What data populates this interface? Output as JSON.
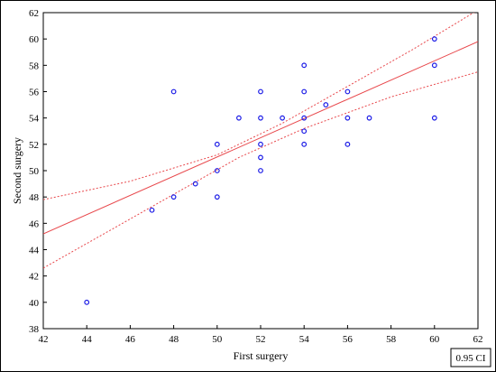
{
  "chart_data": {
    "type": "scatter",
    "title": "",
    "xlabel": "First surgery",
    "ylabel": "Second surgery",
    "xlim": [
      42,
      62
    ],
    "ylim": [
      38,
      62
    ],
    "xticks": [
      42,
      44,
      46,
      48,
      50,
      52,
      54,
      56,
      58,
      60,
      62
    ],
    "yticks": [
      38,
      40,
      42,
      44,
      46,
      48,
      50,
      52,
      54,
      56,
      58,
      60,
      62
    ],
    "grid": false,
    "points": [
      {
        "x": 44,
        "y": 40
      },
      {
        "x": 47,
        "y": 47
      },
      {
        "x": 48,
        "y": 48
      },
      {
        "x": 48,
        "y": 56
      },
      {
        "x": 49,
        "y": 49
      },
      {
        "x": 50,
        "y": 48
      },
      {
        "x": 50,
        "y": 50
      },
      {
        "x": 50,
        "y": 52
      },
      {
        "x": 51,
        "y": 54
      },
      {
        "x": 52,
        "y": 50
      },
      {
        "x": 52,
        "y": 51
      },
      {
        "x": 52,
        "y": 52
      },
      {
        "x": 52,
        "y": 54
      },
      {
        "x": 52,
        "y": 56
      },
      {
        "x": 53,
        "y": 54
      },
      {
        "x": 54,
        "y": 52
      },
      {
        "x": 54,
        "y": 53
      },
      {
        "x": 54,
        "y": 54
      },
      {
        "x": 54,
        "y": 56
      },
      {
        "x": 54,
        "y": 58
      },
      {
        "x": 55,
        "y": 55
      },
      {
        "x": 56,
        "y": 52
      },
      {
        "x": 56,
        "y": 54
      },
      {
        "x": 56,
        "y": 56
      },
      {
        "x": 57,
        "y": 54
      },
      {
        "x": 60,
        "y": 54
      },
      {
        "x": 60,
        "y": 58
      },
      {
        "x": 60,
        "y": 60
      }
    ],
    "fit_line": [
      {
        "x": 42,
        "y": 45.2
      },
      {
        "x": 62,
        "y": 59.8
      }
    ],
    "ci_upper": [
      {
        "x": 42,
        "y": 47.8
      },
      {
        "x": 46,
        "y": 49.2
      },
      {
        "x": 50,
        "y": 51.2
      },
      {
        "x": 53,
        "y": 53.6
      },
      {
        "x": 56,
        "y": 56.4
      },
      {
        "x": 59,
        "y": 59.2
      },
      {
        "x": 62,
        "y": 62.2
      }
    ],
    "ci_lower": [
      {
        "x": 42,
        "y": 42.6
      },
      {
        "x": 45,
        "y": 45.4
      },
      {
        "x": 48,
        "y": 48.2
      },
      {
        "x": 51,
        "y": 51.0
      },
      {
        "x": 54,
        "y": 53.2
      },
      {
        "x": 58,
        "y": 55.6
      },
      {
        "x": 62,
        "y": 57.5
      }
    ],
    "legend": {
      "text": "0.95 CI",
      "placement": "bottom-right"
    },
    "colors": {
      "points": "#1a1ae6",
      "fit": "#e8474b",
      "ci": "#e8474b",
      "axis": "#000000"
    }
  }
}
